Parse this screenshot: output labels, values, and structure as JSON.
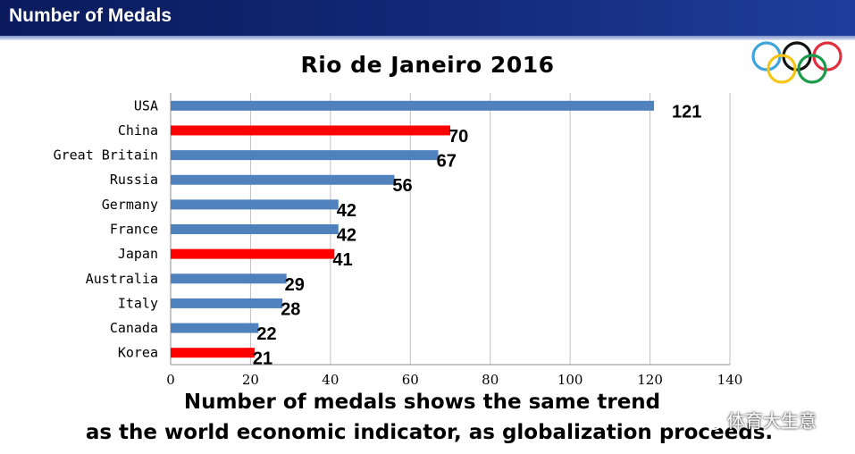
{
  "header": {
    "title": "Number of Medals"
  },
  "caption": {
    "line1": "Number of medals shows the same trend",
    "line2": "as the world economic indicator, as globalization proceeds."
  },
  "watermark": {
    "text": "体育大生意",
    "icon": "wechat-icon"
  },
  "logo": {
    "icon": "olympic-rings-icon",
    "colors": [
      "#3da5dc",
      "#f5c518",
      "#111111",
      "#1a9a4a",
      "#e03040"
    ]
  },
  "colors": {
    "bar_default": "#4f81bd",
    "bar_highlight": "#ff0000",
    "grid": "#bfbfbf"
  },
  "chart_data": {
    "type": "bar",
    "orientation": "horizontal",
    "title": "Rio de Janeiro 2016",
    "categories": [
      "USA",
      "China",
      "Great Britain",
      "Russia",
      "Germany",
      "France",
      "Japan",
      "Australia",
      "Italy",
      "Canada",
      "Korea"
    ],
    "values": [
      121,
      70,
      67,
      56,
      42,
      42,
      41,
      29,
      28,
      22,
      21
    ],
    "highlighted": [
      "China",
      "Japan",
      "Korea"
    ],
    "xlim": [
      0,
      140
    ],
    "xticks": [
      "0",
      "20",
      "40",
      "60",
      "80",
      "100",
      "120",
      "140"
    ],
    "grid": "vertical",
    "xlabel": "",
    "ylabel": ""
  }
}
